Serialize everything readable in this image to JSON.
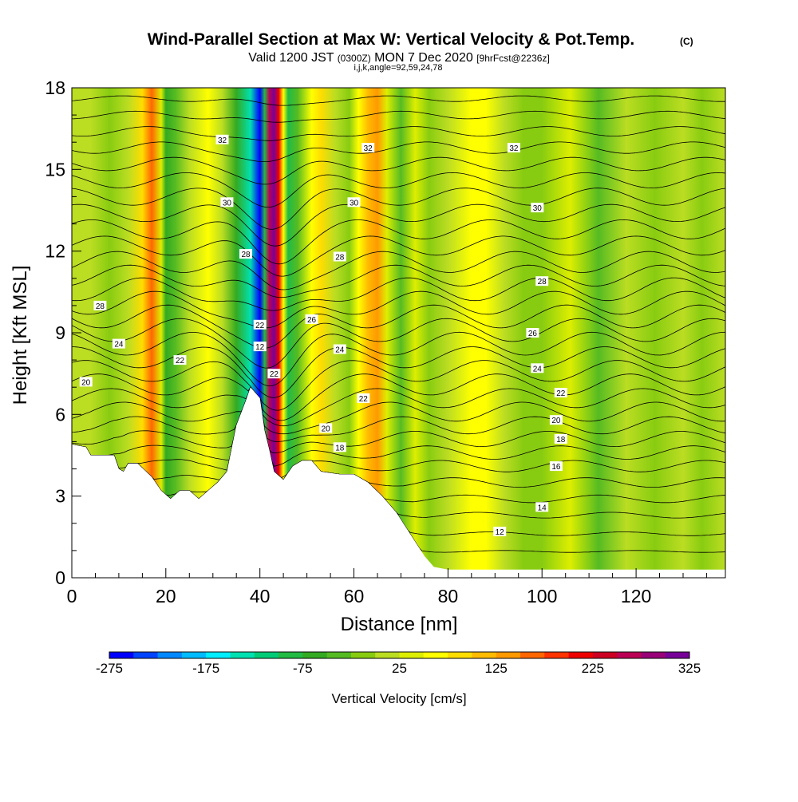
{
  "chart_data": {
    "type": "heatmap",
    "title": "Wind-Parallel Section at Max W: Vertical Velocity & Pot.Temp.",
    "title_mark": "(C)",
    "subtitle_parts": [
      "Valid 1200 JST ",
      "(0300Z)",
      " MON 7 Dec 2020 ",
      "[9hrFcst@2236z]"
    ],
    "subtitle2": "i,j,k,angle=92,59,24,78",
    "xlabel": "Distance [nm]",
    "ylabel": "Height [Kft MSL]",
    "xlim": [
      0,
      139
    ],
    "ylim": [
      0,
      18
    ],
    "x_ticks": [
      0,
      20,
      40,
      60,
      80,
      100,
      120
    ],
    "y_ticks": [
      0,
      3,
      6,
      9,
      12,
      15,
      18
    ],
    "x_minor_step": 5,
    "y_minor_step": 1,
    "colorbar": {
      "label": "Vertical Velocity [cm/s]",
      "range": [
        -275,
        325
      ],
      "step": 25,
      "tick_labels": [
        -275,
        -175,
        -75,
        25,
        125,
        225,
        325
      ],
      "colors": [
        "#0000ff",
        "#0044ff",
        "#0088ff",
        "#00bbff",
        "#00eeff",
        "#00e0b0",
        "#00cc77",
        "#22bb44",
        "#33aa22",
        "#55bb22",
        "#88cc11",
        "#bbdd22",
        "#ddee00",
        "#ffff00",
        "#ffdd00",
        "#ffbb00",
        "#ff9900",
        "#ff6600",
        "#ff3300",
        "#ee0000",
        "#cc0022",
        "#bb0055",
        "#990077",
        "#770099"
      ]
    },
    "w_series": [
      {
        "x": 0,
        "w": 0
      },
      {
        "x": 4,
        "w": 12
      },
      {
        "x": 8,
        "w": -8
      },
      {
        "x": 12,
        "w": 5
      },
      {
        "x": 15,
        "w": 95
      },
      {
        "x": 17,
        "w": 150
      },
      {
        "x": 19,
        "w": 40
      },
      {
        "x": 20,
        "w": -55
      },
      {
        "x": 22,
        "w": -30
      },
      {
        "x": 25,
        "w": 20
      },
      {
        "x": 29,
        "w": 65
      },
      {
        "x": 32,
        "w": 10
      },
      {
        "x": 35,
        "w": -60
      },
      {
        "x": 38,
        "w": -140
      },
      {
        "x": 40,
        "w": -260
      },
      {
        "x": 41,
        "w": -90
      },
      {
        "x": 42,
        "w": 260
      },
      {
        "x": 43,
        "w": 320
      },
      {
        "x": 44,
        "w": 210
      },
      {
        "x": 45,
        "w": 70
      },
      {
        "x": 46,
        "w": -90
      },
      {
        "x": 48,
        "w": -50
      },
      {
        "x": 51,
        "w": 60
      },
      {
        "x": 53,
        "w": 90
      },
      {
        "x": 56,
        "w": 10
      },
      {
        "x": 59,
        "w": -20
      },
      {
        "x": 61,
        "w": 60
      },
      {
        "x": 63,
        "w": 120
      },
      {
        "x": 65,
        "w": 140
      },
      {
        "x": 67,
        "w": 30
      },
      {
        "x": 70,
        "w": -30
      },
      {
        "x": 73,
        "w": 30
      },
      {
        "x": 76,
        "w": -5
      },
      {
        "x": 80,
        "w": 20
      },
      {
        "x": 85,
        "w": 60
      },
      {
        "x": 88,
        "w": 70
      },
      {
        "x": 92,
        "w": 10
      },
      {
        "x": 96,
        "w": -20
      },
      {
        "x": 100,
        "w": -10
      },
      {
        "x": 106,
        "w": 25
      },
      {
        "x": 112,
        "w": -30
      },
      {
        "x": 118,
        "w": 5
      },
      {
        "x": 124,
        "w": -25
      },
      {
        "x": 130,
        "w": 10
      },
      {
        "x": 134,
        "w": -15
      },
      {
        "x": 139,
        "w": 10
      }
    ],
    "terrain": [
      {
        "x": 0,
        "h": 4.9
      },
      {
        "x": 3,
        "h": 4.8
      },
      {
        "x": 4,
        "h": 4.5
      },
      {
        "x": 9,
        "h": 4.5
      },
      {
        "x": 10,
        "h": 4.0
      },
      {
        "x": 11,
        "h": 3.9
      },
      {
        "x": 12,
        "h": 4.2
      },
      {
        "x": 14,
        "h": 4.2
      },
      {
        "x": 17,
        "h": 3.7
      },
      {
        "x": 19,
        "h": 3.2
      },
      {
        "x": 21,
        "h": 2.9
      },
      {
        "x": 23,
        "h": 3.2
      },
      {
        "x": 25,
        "h": 3.2
      },
      {
        "x": 27,
        "h": 2.9
      },
      {
        "x": 29,
        "h": 3.2
      },
      {
        "x": 31,
        "h": 3.5
      },
      {
        "x": 33,
        "h": 3.9
      },
      {
        "x": 35,
        "h": 5.6
      },
      {
        "x": 37,
        "h": 6.5
      },
      {
        "x": 38,
        "h": 7.0
      },
      {
        "x": 40,
        "h": 6.6
      },
      {
        "x": 41,
        "h": 5.4
      },
      {
        "x": 42,
        "h": 4.7
      },
      {
        "x": 43,
        "h": 3.9
      },
      {
        "x": 45,
        "h": 3.6
      },
      {
        "x": 47,
        "h": 4.1
      },
      {
        "x": 49,
        "h": 4.3
      },
      {
        "x": 51,
        "h": 4.3
      },
      {
        "x": 53,
        "h": 3.9
      },
      {
        "x": 57,
        "h": 3.8
      },
      {
        "x": 60,
        "h": 3.8
      },
      {
        "x": 63,
        "h": 3.5
      },
      {
        "x": 66,
        "h": 3.0
      },
      {
        "x": 69,
        "h": 2.4
      },
      {
        "x": 72,
        "h": 1.6
      },
      {
        "x": 75,
        "h": 0.8
      },
      {
        "x": 77,
        "h": 0.4
      },
      {
        "x": 80,
        "h": 0.3
      },
      {
        "x": 139,
        "h": 0.3
      }
    ],
    "theta_lines": [
      {
        "base": 0.9,
        "amp": 0.1
      },
      {
        "base": 1.6,
        "amp": 0.2
      },
      {
        "base": 2.3,
        "amp": 0.3
      },
      {
        "base": 2.9,
        "amp": 0.4
      },
      {
        "base": 3.5,
        "amp": 0.5
      },
      {
        "base": 4.1,
        "amp": 0.6
      },
      {
        "base": 4.6,
        "amp": 0.7
      },
      {
        "base": 5.1,
        "amp": 0.8
      },
      {
        "base": 5.6,
        "amp": 0.9
      },
      {
        "base": 6.1,
        "amp": 1.0
      },
      {
        "base": 6.6,
        "amp": 1.0
      },
      {
        "base": 7.1,
        "amp": 1.1
      },
      {
        "base": 7.6,
        "amp": 1.1
      },
      {
        "base": 8.1,
        "amp": 1.1
      },
      {
        "base": 8.6,
        "amp": 1.2
      },
      {
        "base": 9.1,
        "amp": 1.2
      },
      {
        "base": 9.6,
        "amp": 1.2
      },
      {
        "base": 10.1,
        "amp": 1.2
      },
      {
        "base": 10.6,
        "amp": 1.2
      },
      {
        "base": 11.1,
        "amp": 1.1
      },
      {
        "base": 11.6,
        "amp": 1.1
      },
      {
        "base": 12.2,
        "amp": 1.0
      },
      {
        "base": 12.8,
        "amp": 1.0
      },
      {
        "base": 13.4,
        "amp": 0.9
      },
      {
        "base": 14.0,
        "amp": 0.9
      },
      {
        "base": 14.6,
        "amp": 0.8
      },
      {
        "base": 15.2,
        "amp": 0.7
      },
      {
        "base": 15.8,
        "amp": 0.6
      },
      {
        "base": 16.4,
        "amp": 0.5
      },
      {
        "base": 17.0,
        "amp": 0.4
      },
      {
        "base": 17.6,
        "amp": 0.3
      }
    ],
    "contour_labels": [
      {
        "text": "32",
        "x": 32,
        "y": 16.1
      },
      {
        "text": "32",
        "x": 63,
        "y": 15.8
      },
      {
        "text": "32",
        "x": 94,
        "y": 15.8
      },
      {
        "text": "30",
        "x": 33,
        "y": 13.8
      },
      {
        "text": "30",
        "x": 60,
        "y": 13.8
      },
      {
        "text": "30",
        "x": 99,
        "y": 13.6
      },
      {
        "text": "28",
        "x": 37,
        "y": 11.9
      },
      {
        "text": "28",
        "x": 57,
        "y": 11.8
      },
      {
        "text": "28",
        "x": 100,
        "y": 10.9
      },
      {
        "text": "28",
        "x": 6,
        "y": 10.0
      },
      {
        "text": "26",
        "x": 51,
        "y": 9.5
      },
      {
        "text": "26",
        "x": 98,
        "y": 9.0
      },
      {
        "text": "24",
        "x": 10,
        "y": 8.6
      },
      {
        "text": "24",
        "x": 57,
        "y": 8.4
      },
      {
        "text": "24",
        "x": 99,
        "y": 7.7
      },
      {
        "text": "22",
        "x": 23,
        "y": 8.0
      },
      {
        "text": "22",
        "x": 40,
        "y": 9.3
      },
      {
        "text": "22",
        "x": 43,
        "y": 7.5
      },
      {
        "text": "22",
        "x": 62,
        "y": 6.6
      },
      {
        "text": "22",
        "x": 104,
        "y": 6.8
      },
      {
        "text": "20",
        "x": 3,
        "y": 7.2
      },
      {
        "text": "20",
        "x": 54,
        "y": 5.5
      },
      {
        "text": "20",
        "x": 103,
        "y": 5.8
      },
      {
        "text": "18",
        "x": 57,
        "y": 4.8
      },
      {
        "text": "18",
        "x": 104,
        "y": 5.1
      },
      {
        "text": "16",
        "x": 103,
        "y": 4.1
      },
      {
        "text": "14",
        "x": 100,
        "y": 2.6
      },
      {
        "text": "12",
        "x": 91,
        "y": 1.7
      },
      {
        "text": "12",
        "x": 40,
        "y": 8.5
      }
    ]
  }
}
